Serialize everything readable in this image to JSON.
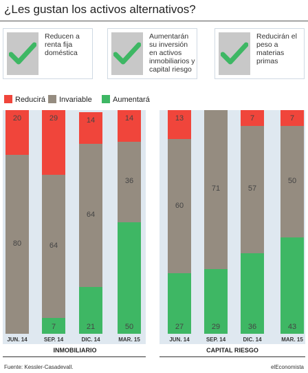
{
  "title": "¿Les gustan los activos alternativos?",
  "cards": [
    {
      "text": "Reducen a renta fija doméstica"
    },
    {
      "text": "Aumentarán su inversión en activos inmobiliarios y capital riesgo"
    },
    {
      "text": "Reducirán el peso a materias primas"
    }
  ],
  "colors": {
    "reducira": "#f0453b",
    "invariable": "#958c80",
    "aumentara": "#3eb764",
    "check": "#3eb764",
    "panel": "#dfe8f0"
  },
  "chart_data": [
    {
      "type": "bar",
      "stacked": true,
      "group": "INMOBILIARIO",
      "categories": [
        "JUN. 14",
        "SEP. 14",
        "DIC. 14",
        "MAR. 15"
      ],
      "series": [
        {
          "name": "Aumentará",
          "values": [
            0,
            7,
            21,
            50
          ]
        },
        {
          "name": "Invariable",
          "values": [
            80,
            64,
            64,
            36
          ]
        },
        {
          "name": "Reducirá",
          "values": [
            20,
            29,
            14,
            14
          ]
        }
      ],
      "ylim": [
        0,
        100
      ]
    },
    {
      "type": "bar",
      "stacked": true,
      "group": "CAPITAL RIESGO",
      "categories": [
        "JUN. 14",
        "SEP. 14",
        "DIC. 14",
        "MAR. 15"
      ],
      "series": [
        {
          "name": "Aumentará",
          "values": [
            27,
            29,
            36,
            43
          ]
        },
        {
          "name": "Invariable",
          "values": [
            60,
            71,
            57,
            50
          ]
        },
        {
          "name": "Reducirá",
          "values": [
            13,
            0,
            7,
            7
          ]
        }
      ],
      "ylim": [
        0,
        100
      ]
    }
  ],
  "legend": [
    "Reducirá",
    "Invariable",
    "Aumentará"
  ],
  "source": "Fuente: Kessler-Casadevall.",
  "brand": "elEconomista"
}
